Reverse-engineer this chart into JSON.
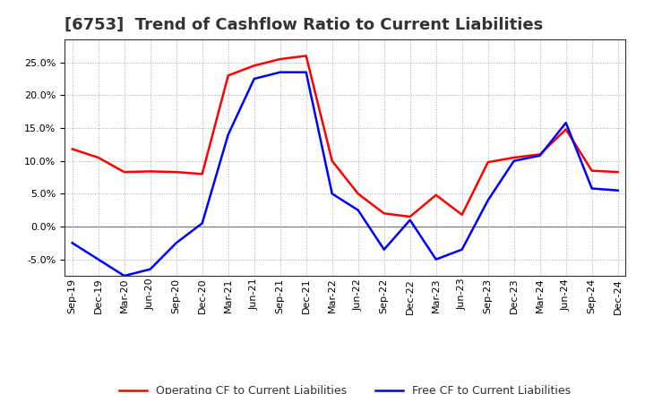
{
  "title": "[6753]  Trend of Cashflow Ratio to Current Liabilities",
  "x_labels": [
    "Sep-19",
    "Dec-19",
    "Mar-20",
    "Jun-20",
    "Sep-20",
    "Dec-20",
    "Mar-21",
    "Jun-21",
    "Sep-21",
    "Dec-21",
    "Mar-22",
    "Jun-22",
    "Sep-22",
    "Dec-22",
    "Mar-23",
    "Jun-23",
    "Sep-23",
    "Dec-23",
    "Mar-24",
    "Jun-24",
    "Sep-24",
    "Dec-24"
  ],
  "operating_cf": [
    11.8,
    10.5,
    8.3,
    8.4,
    8.3,
    8.0,
    23.0,
    24.5,
    25.5,
    26.0,
    10.0,
    5.0,
    2.0,
    1.5,
    4.8,
    1.8,
    9.8,
    10.5,
    11.0,
    14.8,
    8.5,
    8.3
  ],
  "free_cf": [
    -2.5,
    -5.0,
    -7.5,
    -6.5,
    -2.5,
    0.5,
    14.0,
    22.5,
    23.5,
    23.5,
    5.0,
    2.5,
    -3.5,
    1.0,
    -5.0,
    -3.5,
    4.0,
    10.0,
    10.8,
    15.8,
    5.8,
    5.5
  ],
  "operating_color": "#FF0000",
  "free_color": "#0000FF",
  "ylim": [
    -7.5,
    28.5
  ],
  "yticks": [
    -5.0,
    0.0,
    5.0,
    10.0,
    15.0,
    20.0,
    25.0
  ],
  "background_color": "#FFFFFF",
  "plot_bg_color": "#FFFFFF",
  "grid_color": "#AAAAAA",
  "title_fontsize": 13,
  "title_color": "#333333",
  "tick_fontsize": 8,
  "legend_operating": "Operating CF to Current Liabilities",
  "legend_free": "Free CF to Current Liabilities"
}
